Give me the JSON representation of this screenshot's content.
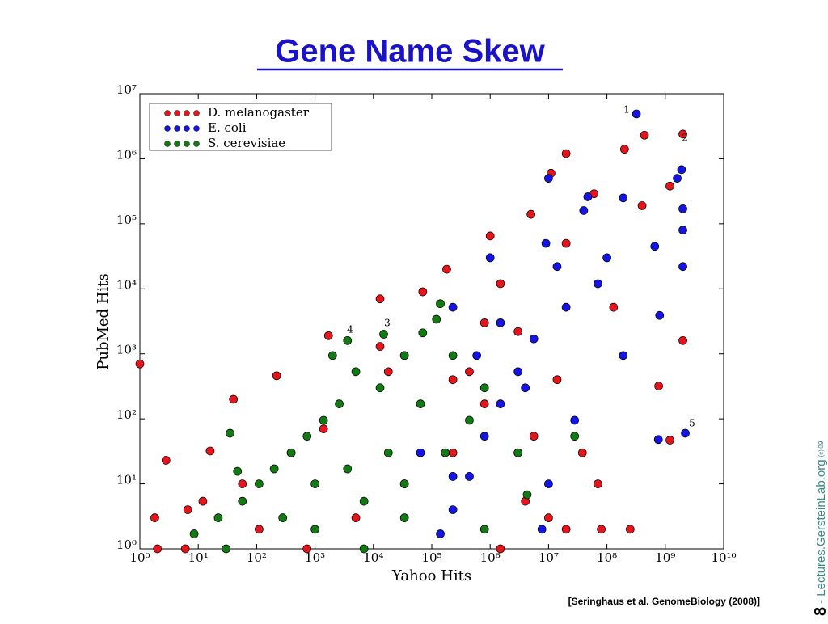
{
  "chart_data": {
    "type": "scatter",
    "title": "Gene Name Skew",
    "x_label": "Yahoo Hits",
    "y_label": "PubMed Hits",
    "xscale": "log",
    "yscale": "log",
    "legend": "upper left",
    "xlim": [
      1,
      10000000000
    ],
    "ylim": [
      1,
      10000000
    ],
    "xticks": [
      {
        "value": 1,
        "label": "10⁰"
      },
      {
        "value": 10,
        "label": "10¹"
      },
      {
        "value": 100,
        "label": "10²"
      },
      {
        "value": 1000,
        "label": "10³"
      },
      {
        "value": 10000,
        "label": "10⁴"
      },
      {
        "value": 100000,
        "label": "10⁵"
      },
      {
        "value": 1000000,
        "label": "10⁶"
      },
      {
        "value": 10000000,
        "label": "10⁷"
      },
      {
        "value": 100000000,
        "label": "10⁸"
      },
      {
        "value": 1000000000,
        "label": "10⁹"
      },
      {
        "value": 10000000000,
        "label": "10¹⁰"
      }
    ],
    "yticks": [
      {
        "value": 1,
        "label": "10⁰"
      },
      {
        "value": 10,
        "label": "10¹"
      },
      {
        "value": 100,
        "label": "10²"
      },
      {
        "value": 1000,
        "label": "10³"
      },
      {
        "value": 10000,
        "label": "10⁴"
      },
      {
        "value": 100000,
        "label": "10⁵"
      },
      {
        "value": 1000000,
        "label": "10⁶"
      },
      {
        "value": 10000000,
        "label": "10⁷"
      }
    ],
    "series": [
      {
        "name": "D. melanogaster",
        "color": "#e8141c",
        "x": [
          2000000000.0,
          440000000.0,
          200000000.0,
          20000000.0,
          11000000.0,
          2000000000.0,
          5000000.0,
          1000000.0,
          180000.0,
          70000.0,
          13000.0,
          1700.0,
          220,
          40,
          2.8,
          1.8,
          1,
          6.6,
          16,
          250000000.0,
          1200000000.0,
          770000000.0,
          130000000.0,
          20000000.0,
          3000000.0,
          800000.0,
          230000.0,
          34000.0,
          38000000.0,
          4000000.0,
          5000.0,
          110,
          20000000.0,
          60000000.0,
          400000000.0,
          1200000000.0,
          800000.0,
          230000.0,
          18000.0,
          1400.0,
          390,
          57,
          12,
          2,
          6,
          730,
          1500000.0,
          10000000.0,
          80000000.0,
          70000000.0,
          5600000.0,
          14000000.0,
          1500000.0,
          440000.0,
          13000.0
        ],
        "values": [
          2400000.0,
          2300000.0,
          1400000.0,
          1200000.0,
          600000.0,
          1600.0,
          140000.0,
          65000.0,
          20000.0,
          9000.0,
          7000.0,
          1900.0,
          460,
          200,
          23,
          3,
          700,
          4,
          32,
          2,
          47,
          320,
          5200.0,
          50000.0,
          2200.0,
          170,
          30,
          10,
          30,
          5.4,
          3,
          2,
          2,
          290000.0,
          190000.0,
          380000.0,
          3000.0,
          400,
          530,
          70,
          30,
          10,
          5.4,
          1,
          1,
          1,
          1,
          3,
          2,
          10,
          54,
          400,
          12000.0,
          530,
          1300.0
        ]
      },
      {
        "name": "E. coli",
        "color": "#1414e6",
        "x": [
          320000000.0,
          1900000000.0,
          1600000000.0,
          2000000000.0,
          2000000000.0,
          2000000000.0,
          10000000.0,
          47000000.0,
          40000000.0,
          190000000.0,
          660000000.0,
          800000000.0,
          2200000000.0,
          760000000.0,
          190000000.0,
          70000000.0,
          20000000.0,
          5600000.0,
          3000000.0,
          1500000.0,
          800000.0,
          440000.0,
          230000.0,
          140000.0,
          10000000.0,
          28000000.0,
          1500000.0,
          590000.0,
          230000.0,
          14000000.0,
          100000000.0,
          9000000.0,
          4000000.0,
          64000.0,
          34000.0,
          230000.0,
          3000000.0,
          7700000.0,
          1000000.0
        ],
        "values": [
          4900000.0,
          680000.0,
          500000.0,
          170000.0,
          80000.0,
          22000.0,
          500000.0,
          260000.0,
          160000.0,
          250000.0,
          45000.0,
          3900.0,
          60,
          48,
          940,
          12000.0,
          5200.0,
          1700.0,
          530,
          170,
          54,
          13,
          4,
          1.7,
          10,
          95,
          3000.0,
          940,
          5200.0,
          22000.0,
          30000.0,
          50000.0,
          300,
          30,
          940,
          13,
          30,
          2,
          30000.0
        ]
      },
      {
        "name": "S. cerevisiae",
        "color": "#127a12",
        "x": [
          15000.0,
          3600.0,
          2000.0,
          35,
          47,
          70000.0,
          140000.0,
          120000.0,
          34000.0,
          13000.0,
          5000.0,
          2600.0,
          1400.0,
          730,
          390,
          200,
          110,
          57,
          280,
          6900.0,
          34000.0,
          170000.0,
          440000.0,
          800000.0,
          3000000.0,
          4300000.0,
          28000000.0,
          3600.0,
          18000.0,
          64000.0,
          230000.0,
          1000.0,
          22,
          8.5,
          30,
          6900.0,
          800000.0,
          1000.0,
          34000.0
        ],
        "values": [
          2000.0,
          1600.0,
          940,
          60,
          15.6,
          2100.0,
          5900.0,
          3400.0,
          940,
          300,
          530,
          170,
          95,
          54,
          30,
          17,
          10,
          5.4,
          3,
          5.4,
          10,
          30,
          95,
          300,
          30,
          6.8,
          54,
          17,
          30,
          170,
          940,
          10,
          3,
          1.7,
          1,
          1,
          2,
          2,
          3
        ]
      }
    ],
    "annotations": [
      "1",
      "2",
      "3",
      "4",
      "5"
    ]
  },
  "citation": "[Seringhaus et al. GenomeBiology (2008)]",
  "footer": {
    "slide_number": "8",
    "site": "- Lectures.GersteinLab.org",
    "copyright": "(c)'09"
  }
}
